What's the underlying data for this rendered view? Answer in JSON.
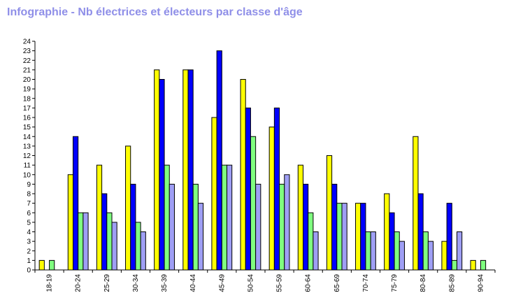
{
  "chart_data": {
    "type": "bar",
    "title": "Infographie - Nb électrices et électeurs par classe d'âge",
    "categories": [
      "18-19",
      "20-24",
      "25-29",
      "30-34",
      "35-39",
      "40-44",
      "45-49",
      "50-54",
      "55-59",
      "60-64",
      "65-69",
      "70-74",
      "75-79",
      "80-84",
      "85-89",
      "90-94"
    ],
    "series": [
      {
        "color": "#ffff00",
        "values": [
          1,
          10,
          11,
          13,
          21,
          21,
          16,
          20,
          15,
          11,
          12,
          7,
          8,
          14,
          3,
          1
        ]
      },
      {
        "color": "#0000ff",
        "values": [
          0,
          14,
          8,
          9,
          20,
          21,
          23,
          17,
          17,
          9,
          9,
          7,
          6,
          8,
          7,
          0
        ]
      },
      {
        "color": "#80ff80",
        "values": [
          1,
          6,
          6,
          5,
          11,
          9,
          11,
          14,
          9,
          6,
          7,
          4,
          4,
          4,
          1,
          1
        ]
      },
      {
        "color": "#9f9ff5",
        "values": [
          0,
          6,
          5,
          4,
          9,
          7,
          11,
          9,
          10,
          4,
          7,
          4,
          3,
          3,
          4,
          0
        ]
      }
    ],
    "ylim": [
      0,
      24
    ],
    "yticks": [
      "0",
      "1",
      "2",
      "3",
      "4",
      "5",
      "6",
      "7",
      "8",
      "9",
      "10",
      "11",
      "12",
      "13",
      "14",
      "15",
      "16",
      "17",
      "18",
      "19",
      "20",
      "21",
      "22",
      "23",
      "24"
    ],
    "grid": false,
    "legend": "none"
  }
}
